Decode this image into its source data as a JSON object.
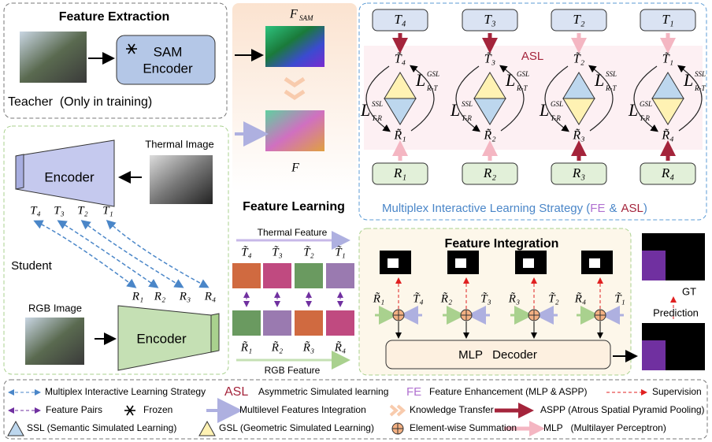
{
  "feature_extraction": {
    "title": "Feature Extraction",
    "encoder": [
      "SAM",
      "Encoder"
    ],
    "teacher": "Teacher  (Only in training)"
  },
  "student": {
    "thermal_image": "Thermal Image",
    "encoder_top": "Encoder",
    "t_labels": [
      "T₄",
      "T₃",
      "T₂",
      "T₁"
    ],
    "label": "Student",
    "rgb_image": "RGB Image",
    "encoder_bottom": "Encoder",
    "r_labels": [
      "R₁",
      "R₂",
      "R₃",
      "R₄"
    ]
  },
  "feature_learning": {
    "f_sam": {
      "base": "F",
      "sub": "SAM"
    },
    "f": "F",
    "title": "Feature Learning",
    "thermal_feature": "Thermal Feature",
    "t_tilde": [
      "T̃₄",
      "T̃₃",
      "T̃₂",
      "T̃₁"
    ],
    "r_tilde": [
      "R̃₁",
      "R̃₂",
      "R̃₃",
      "R̃₄"
    ],
    "rgb_feature": "RGB Feature"
  },
  "mils": {
    "t_boxes": [
      "T₄",
      "T₃",
      "T₂",
      "T₁"
    ],
    "asl": "ASL",
    "t_tilde": [
      "T̃₄",
      "T̃₃",
      "T̃₂",
      "T̃₁"
    ],
    "r_tilde": [
      "R̃₁",
      "R̃₂",
      "R̃₃",
      "R̃₄"
    ],
    "r_boxes": [
      "R₁",
      "R₂",
      "R₃",
      "R₄"
    ],
    "losses": [
      {
        "right": {
          "base": "L",
          "sup": "GSL",
          "sub": "R-T"
        },
        "left": {
          "base": "L",
          "sup": "SSL",
          "sub": "T-R"
        }
      },
      {
        "right": {
          "base": "L",
          "sup": "GSL",
          "sub": "R-T"
        },
        "left": {
          "base": "L",
          "sup": "SSL",
          "sub": "T-R"
        }
      },
      {
        "right": {
          "base": "L",
          "sup": "SSL",
          "sub": "R-T"
        },
        "left": {
          "base": "L",
          "sup": "GSL",
          "sub": "T-R"
        }
      },
      {
        "right": {
          "base": "L",
          "sup": "SSL",
          "sub": "R-T"
        },
        "left": {
          "base": "L",
          "sup": "GSL",
          "sub": "T-R"
        }
      }
    ],
    "caption": {
      "text": "Multiplex Interactive Learning Strategy (",
      "fe": "FE",
      "amp": "&",
      "asl": "ASL",
      "close": ")"
    }
  },
  "feature_integration": {
    "title": "Feature Integration",
    "pairs": [
      [
        "R̃₁",
        "T̃₄"
      ],
      [
        "R̃₂",
        "T̃₃"
      ],
      [
        "R̃₃",
        "T̃₂"
      ],
      [
        "R̃₄",
        "T̃₁"
      ]
    ],
    "decoder": "MLP   Decoder",
    "gt": "GT",
    "prediction": "Prediction"
  },
  "legend": {
    "mils": "Multiplex Interactive Learning Strategy",
    "asl_symbol": "ASL",
    "asl": "Asymmetric Simulated learning",
    "fe_symbol": "FE",
    "fe": "Feature Enhancement (MLP & ASPP)",
    "supervision": "Supervision",
    "feature_pairs": "Feature Pairs",
    "frozen": "Frozen",
    "multilevel": "Multilevel Features Integration",
    "knowledge": "Knowledge Transfer",
    "aspp": "ASPP (Atrous Spatial Pyramid Pooling)",
    "ssl": "SSL (Semantic Simulated Learning)",
    "gsl": "GSL (Geometric Simulated Learning)",
    "sum": "Element-wise Summation",
    "mlp": "MLP   (Multilayer Perceptron)"
  }
}
